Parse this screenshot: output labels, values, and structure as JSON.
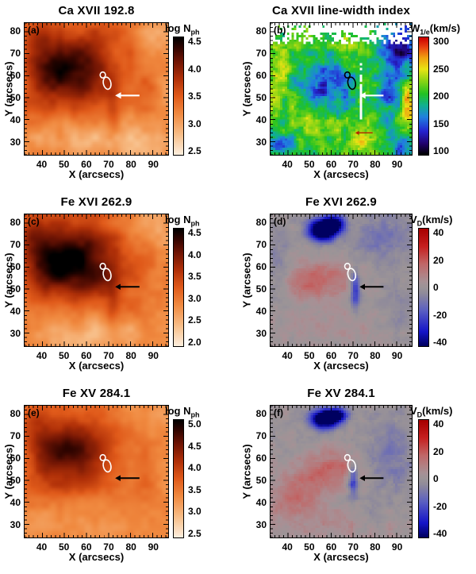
{
  "chart_data": {
    "type": "heatmap",
    "layout": "3x2-grid",
    "axes": {
      "xlabel": "X (arcsecs)",
      "ylabel": "Y (arcsecs)",
      "xticks": [
        40,
        50,
        60,
        70,
        80,
        90
      ],
      "yticks": [
        30,
        40,
        50,
        60,
        70,
        80
      ],
      "xrange": [
        32,
        97
      ],
      "yrange": [
        24,
        84
      ]
    },
    "colormaps": {
      "heat": [
        [
          0,
          "#fdeedd"
        ],
        [
          0.18,
          "#f7bc85"
        ],
        [
          0.35,
          "#f08a40"
        ],
        [
          0.5,
          "#e05a1a"
        ],
        [
          0.65,
          "#b03008"
        ],
        [
          0.8,
          "#6e1404"
        ],
        [
          0.92,
          "#2e0400"
        ],
        [
          1,
          "#000000"
        ]
      ],
      "rainbow": [
        [
          0,
          "#000000"
        ],
        [
          0.09,
          "#20006a"
        ],
        [
          0.2,
          "#2424d0"
        ],
        [
          0.32,
          "#2080e0"
        ],
        [
          0.42,
          "#10b090"
        ],
        [
          0.52,
          "#22c222"
        ],
        [
          0.63,
          "#8ad414"
        ],
        [
          0.73,
          "#e8e414"
        ],
        [
          0.83,
          "#f0a010"
        ],
        [
          0.92,
          "#e84010"
        ],
        [
          1,
          "#cc0000"
        ]
      ],
      "doppler": [
        [
          0,
          "#000060"
        ],
        [
          0.12,
          "#1414c8"
        ],
        [
          0.3,
          "#5a5ec2"
        ],
        [
          0.45,
          "#908b9a"
        ],
        [
          0.5,
          "#9b9497"
        ],
        [
          0.55,
          "#a89095"
        ],
        [
          0.7,
          "#c06868"
        ],
        [
          0.85,
          "#c62020"
        ],
        [
          1,
          "#a80000"
        ]
      ]
    },
    "panels": [
      {
        "id": "a",
        "label": "(a)",
        "title": "Ca XVII 192.8",
        "colormap": "heat",
        "colorbar": {
          "main": "log N",
          "sub": "ph",
          "rest": "",
          "ticks": [
            "4.5",
            "4.0",
            "3.5",
            "3.0",
            "2.5"
          ],
          "range": [
            2.5,
            4.5
          ]
        },
        "contour": {
          "x": 69,
          "y": 57.5,
          "color": "#ffffff"
        },
        "arrows": [
          {
            "x1": 84,
            "y1": 51,
            "x2": 73,
            "y2": 51,
            "color": "#ffffff"
          }
        ],
        "field": {
          "base": 0.45,
          "noise": 0.08,
          "nscale": 8,
          "blobs": [
            [
              55,
              66,
              12,
              9,
              0.4
            ],
            [
              45,
              59,
              7,
              7,
              0.22
            ],
            [
              62,
              54,
              6,
              5,
              0.18
            ],
            [
              38,
              74,
              5,
              7,
              0.18
            ],
            [
              52,
              47,
              10,
              4,
              0.1
            ],
            [
              72,
              45,
              2,
              9,
              0.1
            ],
            [
              60,
              30,
              28,
              7,
              -0.2
            ],
            [
              92,
              80,
              9,
              8,
              -0.18
            ],
            [
              96,
              50,
              5,
              18,
              -0.1
            ],
            [
              85,
              29,
              10,
              6,
              -0.12
            ]
          ]
        }
      },
      {
        "id": "b",
        "label": "(b)",
        "title": "Ca XVII line-width index",
        "colormap": "rainbow",
        "colorbar": {
          "main": "W",
          "sub": "1/e",
          "rest": "(km/s)",
          "ticks": [
            "300",
            "250",
            "200",
            "150",
            "100"
          ],
          "range": [
            100,
            300
          ]
        },
        "contour": {
          "x": 69,
          "y": 57.5,
          "color": "#000000"
        },
        "arrows": [
          {
            "x1": 84,
            "y1": 51,
            "x2": 73,
            "y2": 51,
            "color": "#ffffff"
          },
          {
            "x1": 79,
            "y1": 34,
            "x2": 71,
            "y2": 34,
            "color": "#b42500",
            "w": 1.4
          }
        ],
        "field": {
          "base": 0.53,
          "noise": 0.16,
          "nscale": 3.5,
          "white_top": 74,
          "white_col": [
            73.5,
            0.8,
            40,
            66
          ],
          "blobs": [
            [
              58,
              52,
              9,
              8,
              -0.2
            ],
            [
              52,
              60,
              6,
              6,
              -0.12
            ],
            [
              63,
              60,
              5,
              5,
              -0.14
            ],
            [
              92,
              72,
              6,
              11,
              -0.38
            ],
            [
              86,
              52,
              3,
              10,
              -0.2
            ],
            [
              93,
              27,
              4,
              4,
              -0.3
            ],
            [
              35,
              28,
              5,
              4,
              -0.22
            ],
            [
              45,
              44,
              5,
              4,
              0.12
            ],
            [
              60,
              38,
              8,
              4,
              0.1
            ],
            [
              95,
              50,
              2,
              8,
              0.3
            ],
            [
              75,
              30,
              4,
              3,
              0.18
            ],
            [
              38,
              66,
              4,
              4,
              0.12
            ],
            [
              33,
              55,
              3,
              15,
              0.1
            ],
            [
              70,
              73,
              6,
              4,
              0.1
            ]
          ]
        }
      },
      {
        "id": "c",
        "label": "(c)",
        "title": "Fe XVI 262.9",
        "colormap": "heat",
        "colorbar": {
          "main": "log N",
          "sub": "ph",
          "rest": "",
          "ticks": [
            "4.5",
            "4.0",
            "3.5",
            "3.0",
            "2.5",
            "2.0"
          ],
          "range": [
            2.0,
            4.5
          ]
        },
        "contour": {
          "x": 69,
          "y": 57.5,
          "color": "#ffffff"
        },
        "arrows": [
          {
            "x1": 84,
            "y1": 51,
            "x2": 73,
            "y2": 51,
            "color": "#000000",
            "w": 2
          }
        ],
        "field": {
          "base": 0.48,
          "noise": 0.07,
          "nscale": 8,
          "blobs": [
            [
              55,
              66,
              12,
              9,
              0.44
            ],
            [
              44,
              58,
              8,
              8,
              0.28
            ],
            [
              63,
              54,
              7,
              6,
              0.24
            ],
            [
              38,
              74,
              5,
              7,
              0.2
            ],
            [
              72,
              45,
              2,
              9,
              0.1
            ],
            [
              60,
              29,
              28,
              7,
              -0.25
            ],
            [
              90,
              80,
              10,
              8,
              -0.22
            ],
            [
              96,
              50,
              5,
              18,
              -0.12
            ]
          ]
        }
      },
      {
        "id": "d",
        "label": "(d)",
        "title": "Fe XVI 262.9",
        "colormap": "doppler",
        "colorbar": {
          "main": "V",
          "sub": "D",
          "rest": "(km/s)",
          "ticks": [
            "40",
            "20",
            "0",
            "-20",
            "-40"
          ],
          "range": [
            -40,
            40
          ]
        },
        "contour": {
          "x": 69,
          "y": 57.5,
          "color": "#ffffff"
        },
        "arrows": [
          {
            "x1": 84,
            "y1": 51,
            "x2": 73,
            "y2": 51,
            "color": "#000000",
            "w": 2
          }
        ],
        "field": {
          "base": 0.5,
          "noise": 0.05,
          "nscale": 3,
          "blobs": [
            [
              56,
              77,
              4.5,
              3.5,
              -0.85
            ],
            [
              62,
              80,
              3,
              2.5,
              -0.45
            ],
            [
              85,
              74,
              10,
              8,
              -0.13
            ],
            [
              57,
              55,
              10,
              6,
              0.17
            ],
            [
              48,
              52,
              6,
              5,
              0.1
            ],
            [
              71,
              50,
              1.6,
              6,
              -0.33
            ],
            [
              60,
              33,
              24,
              6,
              0.05
            ],
            [
              36,
              62,
              3,
              10,
              -0.08
            ],
            [
              90,
              40,
              6,
              10,
              -0.06
            ]
          ]
        }
      },
      {
        "id": "e",
        "label": "(e)",
        "title": "Fe XV 284.1",
        "colormap": "heat",
        "colorbar": {
          "main": "log N",
          "sub": "ph",
          "rest": "",
          "ticks": [
            "5.0",
            "4.5",
            "4.0",
            "3.5",
            "3.0",
            "2.5"
          ],
          "range": [
            2.5,
            5.0
          ]
        },
        "contour": {
          "x": 69,
          "y": 57.5,
          "color": "#ffffff"
        },
        "arrows": [
          {
            "x1": 84,
            "y1": 51,
            "x2": 73,
            "y2": 51,
            "color": "#000000",
            "w": 2
          }
        ],
        "field": {
          "base": 0.44,
          "noise": 0.06,
          "nscale": 8,
          "blobs": [
            [
              54,
              67,
              11,
              8,
              0.36
            ],
            [
              45,
              59,
              7,
              7,
              0.2
            ],
            [
              62,
              55,
              6,
              5,
              0.16
            ],
            [
              38,
              74,
              4,
              6,
              0.15
            ],
            [
              52,
              47,
              10,
              4,
              0.08
            ],
            [
              60,
              30,
              28,
              7,
              -0.14
            ],
            [
              90,
              80,
              10,
              8,
              -0.12
            ],
            [
              96,
              50,
              5,
              18,
              -0.08
            ]
          ]
        }
      },
      {
        "id": "f",
        "label": "(f)",
        "title": "Fe XV 284.1",
        "colormap": "doppler",
        "colorbar": {
          "main": "V",
          "sub": "D",
          "rest": "(km/s)",
          "ticks": [
            "40",
            "20",
            "0",
            "-20",
            "-40"
          ],
          "range": [
            -40,
            40
          ]
        },
        "contour": {
          "x": 69,
          "y": 57.5,
          "color": "#ffffff"
        },
        "arrows": [
          {
            "x1": 84,
            "y1": 51,
            "x2": 73,
            "y2": 51,
            "color": "#000000",
            "w": 2
          }
        ],
        "field": {
          "base": 0.5,
          "noise": 0.055,
          "nscale": 3,
          "blobs": [
            [
              57,
              78,
              4.5,
              3,
              -0.8
            ],
            [
              63,
              80,
              3,
              2,
              -0.4
            ],
            [
              60,
              55,
              9,
              6,
              0.2
            ],
            [
              47,
              48,
              7,
              5,
              0.14
            ],
            [
              70,
              50,
              1.6,
              5,
              -0.33
            ],
            [
              42,
              40,
              8,
              4,
              0.12
            ],
            [
              88,
              62,
              8,
              12,
              -0.12
            ],
            [
              60,
              31,
              24,
              6,
              0.07
            ],
            [
              78,
              35,
              6,
              4,
              -0.06
            ]
          ]
        }
      }
    ]
  }
}
